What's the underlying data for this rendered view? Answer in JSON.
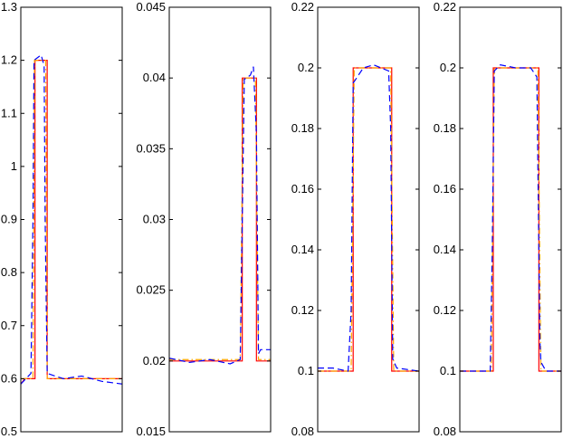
{
  "chart_data": [
    {
      "type": "line",
      "ylim": [
        0.5,
        1.3
      ],
      "yticks": [
        0.5,
        0.6,
        0.7,
        0.8,
        0.9,
        1,
        1.1,
        1.2,
        1.3
      ],
      "ytick_labels": [
        "0.5",
        "0.6",
        "0.7",
        "0.8",
        "0.9",
        "1",
        "1.1",
        "1.2",
        "1.3"
      ],
      "xlim": [
        0,
        1
      ],
      "grid": false,
      "series": [
        {
          "color": "#ff0000",
          "style": "solid",
          "points": [
            [
              0,
              0.59
            ],
            [
              0.04,
              0.6
            ],
            [
              0.14,
              0.6
            ],
            [
              0.14,
              1.2
            ],
            [
              0.26,
              1.2
            ],
            [
              0.26,
              0.6
            ],
            [
              1,
              0.6
            ]
          ]
        },
        {
          "color": "#ffa500",
          "style": "dashdot",
          "points": [
            [
              0,
              0.6
            ],
            [
              0.12,
              0.6
            ],
            [
              0.135,
              1.2
            ],
            [
              0.245,
              1.2
            ],
            [
              0.26,
              0.6
            ],
            [
              1,
              0.6
            ]
          ]
        },
        {
          "color": "#0000ff",
          "style": "dashed",
          "points": [
            [
              0,
              0.59
            ],
            [
              0.1,
              0.61
            ],
            [
              0.12,
              0.9
            ],
            [
              0.13,
              1.2
            ],
            [
              0.2,
              1.21
            ],
            [
              0.23,
              1.19
            ],
            [
              0.24,
              0.9
            ],
            [
              0.26,
              0.61
            ],
            [
              0.42,
              0.6
            ],
            [
              0.6,
              0.605
            ],
            [
              0.8,
              0.595
            ],
            [
              1,
              0.59
            ]
          ]
        }
      ]
    },
    {
      "type": "line",
      "ylim": [
        0.015,
        0.045
      ],
      "yticks": [
        0.015,
        0.02,
        0.025,
        0.03,
        0.035,
        0.04,
        0.045
      ],
      "ytick_labels": [
        "0.015",
        "0.02",
        "0.025",
        "0.03",
        "0.035",
        "0.04",
        "0.045"
      ],
      "xlim": [
        0,
        1
      ],
      "grid": false,
      "series": [
        {
          "color": "#ff0000",
          "style": "solid",
          "points": [
            [
              0,
              0.02
            ],
            [
              0.72,
              0.02
            ],
            [
              0.72,
              0.04
            ],
            [
              0.86,
              0.04
            ],
            [
              0.86,
              0.02
            ],
            [
              1,
              0.02
            ]
          ]
        },
        {
          "color": "#ffa500",
          "style": "dashdot",
          "points": [
            [
              0,
              0.0201
            ],
            [
              0.7,
              0.0201
            ],
            [
              0.73,
              0.04
            ],
            [
              0.85,
              0.04
            ],
            [
              0.88,
              0.0201
            ],
            [
              1,
              0.0201
            ]
          ]
        },
        {
          "color": "#0000ff",
          "style": "dashed",
          "points": [
            [
              0,
              0.0202
            ],
            [
              0.2,
              0.0199
            ],
            [
              0.4,
              0.0201
            ],
            [
              0.6,
              0.0198
            ],
            [
              0.7,
              0.0201
            ],
            [
              0.72,
              0.03
            ],
            [
              0.74,
              0.0399
            ],
            [
              0.8,
              0.0402
            ],
            [
              0.83,
              0.0408
            ],
            [
              0.86,
              0.036
            ],
            [
              0.88,
              0.0205
            ],
            [
              0.9,
              0.0208
            ],
            [
              1,
              0.0208
            ]
          ]
        }
      ]
    },
    {
      "type": "line",
      "ylim": [
        0.08,
        0.22
      ],
      "yticks": [
        0.08,
        0.1,
        0.12,
        0.14,
        0.16,
        0.18,
        0.2,
        0.22
      ],
      "ytick_labels": [
        "0.08",
        "0.1",
        "0.12",
        "0.14",
        "0.16",
        "0.18",
        "0.2",
        "0.22"
      ],
      "xlim": [
        0,
        1
      ],
      "grid": false,
      "series": [
        {
          "color": "#ff0000",
          "style": "solid",
          "points": [
            [
              0,
              0.1
            ],
            [
              0.35,
              0.1
            ],
            [
              0.35,
              0.2
            ],
            [
              0.73,
              0.2
            ],
            [
              0.73,
              0.1
            ],
            [
              1,
              0.1
            ]
          ]
        },
        {
          "color": "#ffa500",
          "style": "dashdot",
          "points": [
            [
              0,
              0.1
            ],
            [
              0.33,
              0.1
            ],
            [
              0.36,
              0.2
            ],
            [
              0.72,
              0.2
            ],
            [
              0.75,
              0.1
            ],
            [
              1,
              0.1
            ]
          ]
        },
        {
          "color": "#0000ff",
          "style": "dashed",
          "points": [
            [
              0,
              0.101
            ],
            [
              0.15,
              0.101
            ],
            [
              0.3,
              0.1
            ],
            [
              0.33,
              0.12
            ],
            [
              0.35,
              0.195
            ],
            [
              0.45,
              0.2
            ],
            [
              0.55,
              0.201
            ],
            [
              0.7,
              0.199
            ],
            [
              0.72,
              0.18
            ],
            [
              0.74,
              0.104
            ],
            [
              0.78,
              0.101
            ],
            [
              1,
              0.1
            ]
          ]
        }
      ]
    },
    {
      "type": "line",
      "ylim": [
        0.08,
        0.22
      ],
      "yticks": [
        0.08,
        0.1,
        0.12,
        0.14,
        0.16,
        0.18,
        0.2,
        0.22
      ],
      "ytick_labels": [
        "0.08",
        "0.1",
        "0.12",
        "0.14",
        "0.16",
        "0.18",
        "0.2",
        "0.22"
      ],
      "xlim": [
        0,
        1
      ],
      "grid": false,
      "series": [
        {
          "color": "#ff0000",
          "style": "solid",
          "points": [
            [
              0,
              0.1
            ],
            [
              0.33,
              0.1
            ],
            [
              0.33,
              0.2
            ],
            [
              0.78,
              0.2
            ],
            [
              0.78,
              0.1
            ],
            [
              1,
              0.1
            ]
          ]
        },
        {
          "color": "#ffa500",
          "style": "dashdot",
          "points": [
            [
              0,
              0.1
            ],
            [
              0.31,
              0.1
            ],
            [
              0.34,
              0.2
            ],
            [
              0.77,
              0.2
            ],
            [
              0.8,
              0.1
            ],
            [
              1,
              0.1
            ]
          ]
        },
        {
          "color": "#0000ff",
          "style": "dashed",
          "points": [
            [
              0,
              0.1
            ],
            [
              0.3,
              0.1
            ],
            [
              0.32,
              0.14
            ],
            [
              0.34,
              0.199
            ],
            [
              0.4,
              0.201
            ],
            [
              0.55,
              0.2
            ],
            [
              0.7,
              0.2
            ],
            [
              0.76,
              0.197
            ],
            [
              0.79,
              0.11
            ],
            [
              0.8,
              0.103
            ],
            [
              0.85,
              0.1
            ],
            [
              1,
              0.1
            ]
          ]
        }
      ]
    }
  ]
}
